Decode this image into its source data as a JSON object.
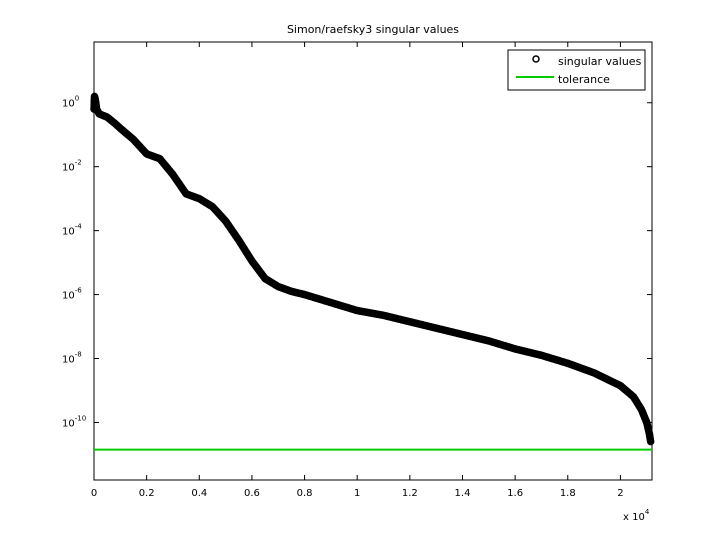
{
  "chart_data": {
    "type": "scatter",
    "title": "Simon/raefsky3 singular values",
    "xlabel": "",
    "ylabel": "",
    "x_multiplier_label": {
      "base": "x 10",
      "exp": "4"
    },
    "xlim": [
      0,
      2.12
    ],
    "ylim_log10": [
      -11.8,
      1.9
    ],
    "y_scale": "log",
    "grid": false,
    "legend_position": "top-right",
    "x_ticks": [
      {
        "value": 0,
        "label": "0"
      },
      {
        "value": 0.2,
        "label": "0.2"
      },
      {
        "value": 0.4,
        "label": "0.4"
      },
      {
        "value": 0.6,
        "label": "0.6"
      },
      {
        "value": 0.8,
        "label": "0.8"
      },
      {
        "value": 1.0,
        "label": "1"
      },
      {
        "value": 1.2,
        "label": "1.2"
      },
      {
        "value": 1.4,
        "label": "1.4"
      },
      {
        "value": 1.6,
        "label": "1.6"
      },
      {
        "value": 1.8,
        "label": "1.8"
      },
      {
        "value": 2.0,
        "label": "2"
      }
    ],
    "y_ticks": [
      {
        "value": 0,
        "base": "10",
        "exp": "0"
      },
      {
        "value": -2,
        "base": "10",
        "exp": "-2"
      },
      {
        "value": -4,
        "base": "10",
        "exp": "-4"
      },
      {
        "value": -6,
        "base": "10",
        "exp": "-6"
      },
      {
        "value": -8,
        "base": "10",
        "exp": "-8"
      },
      {
        "value": -10,
        "base": "10",
        "exp": "-10"
      }
    ],
    "series": [
      {
        "name": "singular values",
        "marker": "circle",
        "color": "#000000",
        "points_x": [
          0,
          0.002,
          0.005,
          0.01,
          0.02,
          0.05,
          0.08,
          0.1,
          0.15,
          0.2,
          0.25,
          0.3,
          0.35,
          0.4,
          0.45,
          0.5,
          0.55,
          0.6,
          0.65,
          0.7,
          0.75,
          0.8,
          0.9,
          1.0,
          1.1,
          1.2,
          1.3,
          1.4,
          1.5,
          1.6,
          1.7,
          1.8,
          1.9,
          2.0,
          2.05,
          2.08,
          2.1,
          2.11,
          2.115
        ],
        "points_log10_y": [
          -0.2,
          0.2,
          0.1,
          -0.2,
          -0.35,
          -0.45,
          -0.65,
          -0.8,
          -1.15,
          -1.6,
          -1.75,
          -2.25,
          -2.85,
          -3.0,
          -3.25,
          -3.7,
          -4.3,
          -4.95,
          -5.5,
          -5.75,
          -5.9,
          -6.0,
          -6.25,
          -6.5,
          -6.65,
          -6.85,
          -7.05,
          -7.25,
          -7.45,
          -7.7,
          -7.9,
          -8.15,
          -8.45,
          -8.85,
          -9.2,
          -9.6,
          -10.0,
          -10.35,
          -10.6
        ]
      },
      {
        "name": "tolerance",
        "marker": "line",
        "color": "#00cc00",
        "points_x": [
          0,
          2.12
        ],
        "points_log10_y": [
          -10.85,
          -10.85
        ]
      }
    ]
  }
}
